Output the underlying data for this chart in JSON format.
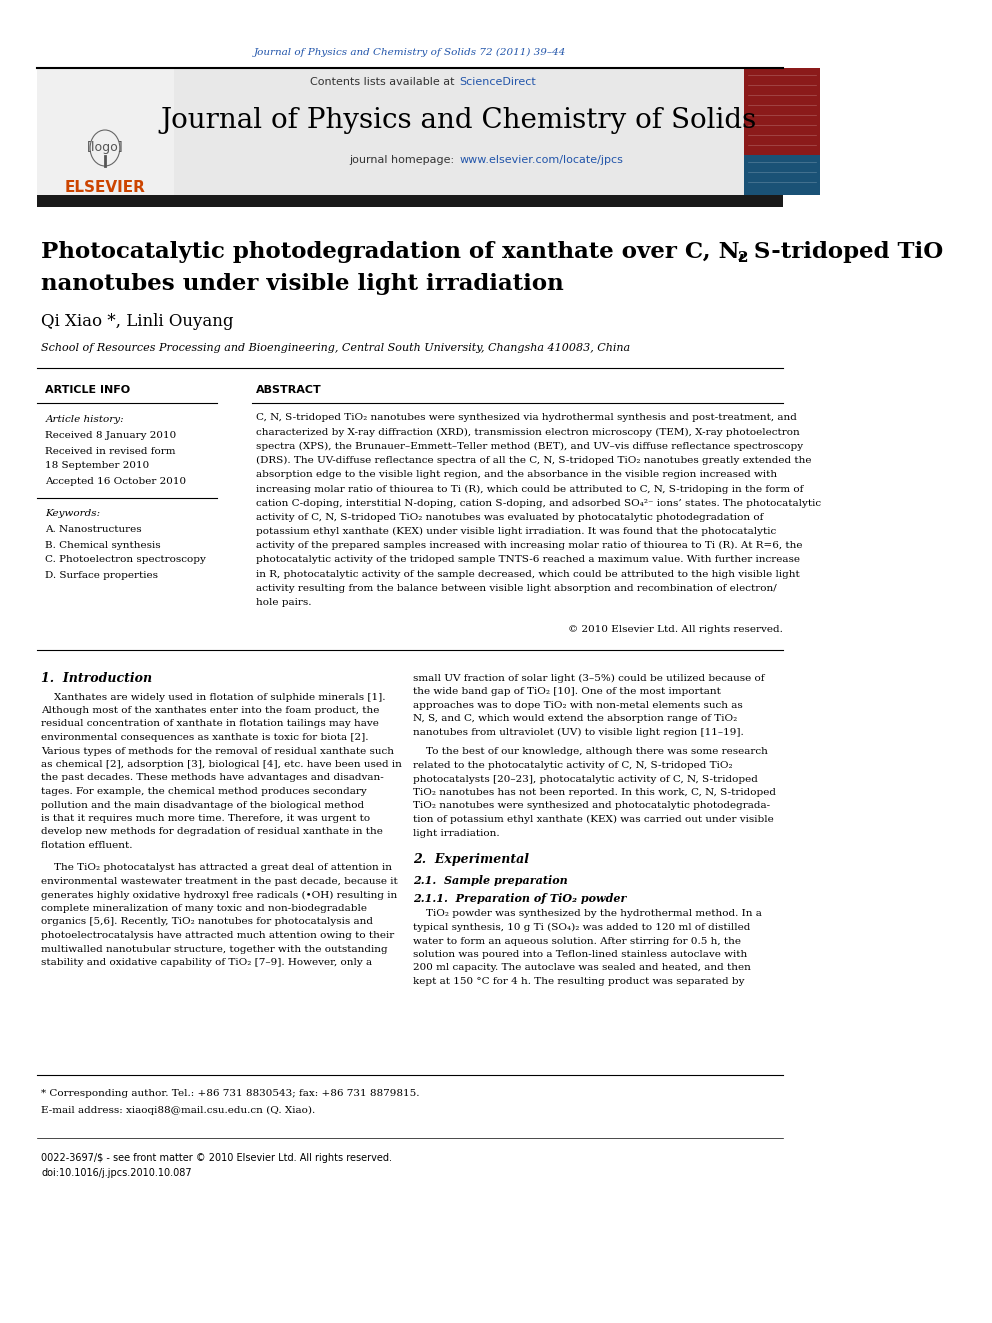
{
  "journal_ref": "Journal of Physics and Chemistry of Solids 72 (2011) 39–44",
  "journal_name": "Journal of Physics and Chemistry of Solids",
  "contents_line": "Contents lists available at ScienceDirect",
  "sciencedirect_text": "ScienceDirect",
  "homepage_line": "journal homepage: www.elsevier.com/locate/jpcs",
  "homepage_url": "www.elsevier.com/locate/jpcs",
  "paper_title_line1": "Photocatalytic photodegradation of xanthate over C, N, S-tridoped TiO",
  "paper_title_tio2_sub": "2",
  "paper_title_line2": "nanotubes under visible light irradiation",
  "authors": "Qi Xiao *, Linli Ouyang",
  "affiliation": "School of Resources Processing and Bioengineering, Central South University, Changsha 410083, China",
  "article_info_header": "ARTICLE INFO",
  "abstract_header": "ABSTRACT",
  "article_history_label": "Article history:",
  "received_line": "Received 8 January 2010",
  "revised_line": "Received in revised form",
  "revised_date": "18 September 2010",
  "accepted_line": "Accepted 16 October 2010",
  "keywords_label": "Keywords:",
  "keyword1": "A. Nanostructures",
  "keyword2": "B. Chemical synthesis",
  "keyword3": "C. Photoelectron spectroscopy",
  "keyword4": "D. Surface properties",
  "copyright_line": "© 2010 Elsevier Ltd. All rights reserved.",
  "intro_header": "1.  Introduction",
  "section2_header": "2.  Experimental",
  "section21_header": "2.1.  Sample preparation",
  "section211_header": "2.1.1.  Preparation of TiO₂ powder",
  "footnote_text": "* Corresponding author. Tel.: +86 731 8830543; fax: +86 731 8879815.",
  "footnote_email": "E-mail address: xiaoqi88@mail.csu.edu.cn (Q. Xiao).",
  "issn_line": "0022-3697/$ - see front matter © 2010 Elsevier Ltd. All rights reserved.",
  "doi_line": "doi:10.1016/j.jpcs.2010.10.087",
  "bg_color": "#ffffff",
  "header_bg": "#e8e8e8",
  "dark_bar_color": "#1a1a1a",
  "link_color": "#2255aa",
  "orange_color": "#cc4400",
  "title_color": "#000000",
  "text_color": "#000000",
  "abstract_lines": [
    "C, N, S-tridoped TiO₂ nanotubes were synthesized via hydrothermal synthesis and post-treatment, and",
    "characterized by X-ray diffraction (XRD), transmission electron microscopy (TEM), X-ray photoelectron",
    "spectra (XPS), the Brunauer–Emmett–Teller method (BET), and UV–vis diffuse reflectance spectroscopy",
    "(DRS). The UV-diffuse reflectance spectra of all the C, N, S-tridoped TiO₂ nanotubes greatly extended the",
    "absorption edge to the visible light region, and the absorbance in the visible region increased with",
    "increasing molar ratio of thiourea to Ti (R), which could be attributed to C, N, S-tridoping in the form of",
    "cation C-doping, interstitial N-doping, cation S-doping, and adsorbed SO₄²⁻ ions’ states. The photocatalytic",
    "activity of C, N, S-tridoped TiO₂ nanotubes was evaluated by photocatalytic photodegradation of",
    "potassium ethyl xanthate (KEX) under visible light irradiation. It was found that the photocatalytic",
    "activity of the prepared samples increased with increasing molar ratio of thiourea to Ti (R). At R=6, the",
    "photocatalytic activity of the tridoped sample TNTS-6 reached a maximum value. With further increase",
    "in R, photocatalytic activity of the sample decreased, which could be attributed to the high visible light",
    "activity resulting from the balance between visible light absorption and recombination of electron/",
    "hole pairs."
  ],
  "intro_l1": [
    "    Xanthates are widely used in flotation of sulphide minerals [1].",
    "Although most of the xanthates enter into the foam product, the",
    "residual concentration of xanthate in flotation tailings may have",
    "environmental consequences as xanthate is toxic for biota [2].",
    "Various types of methods for the removal of residual xanthate such",
    "as chemical [2], adsorption [3], biological [4], etc. have been used in",
    "the past decades. These methods have advantages and disadvan-",
    "tages. For example, the chemical method produces secondary",
    "pollution and the main disadvantage of the biological method",
    "is that it requires much more time. Therefore, it was urgent to",
    "develop new methods for degradation of residual xanthate in the",
    "flotation effluent."
  ],
  "intro_l2": [
    "    The TiO₂ photocatalyst has attracted a great deal of attention in",
    "environmental wastewater treatment in the past decade, because it",
    "generates highly oxidative hydroxyl free radicals (•OH) resulting in",
    "complete mineralization of many toxic and non-biodegradable",
    "organics [5,6]. Recently, TiO₂ nanotubes for photocatalysis and",
    "photoelectrocatalysis have attracted much attention owing to their",
    "multiwalled nanotubular structure, together with the outstanding",
    "stability and oxidative capability of TiO₂ [7–9]. However, only a"
  ],
  "right_col_lines1": [
    "small UV fraction of solar light (3–5%) could be utilized because of",
    "the wide band gap of TiO₂ [10]. One of the most important",
    "approaches was to dope TiO₂ with non-metal elements such as",
    "N, S, and C, which would extend the absorption range of TiO₂",
    "nanotubes from ultraviolet (UV) to visible light region [11–19]."
  ],
  "right_col_lines2": [
    "    To the best of our knowledge, although there was some research",
    "related to the photocatalytic activity of C, N, S-tridoped TiO₂",
    "photocatalysts [20–23], photocatalytic activity of C, N, S-tridoped",
    "TiO₂ nanotubes has not been reported. In this work, C, N, S-tridoped",
    "TiO₂ nanotubes were synthesized and photocatalytic photodegrada-",
    "tion of potassium ethyl xanthate (KEX) was carried out under visible",
    "light irradiation."
  ],
  "sec211_lines": [
    "    TiO₂ powder was synthesized by the hydrothermal method. In a",
    "typical synthesis, 10 g Ti (SO₄)₂ was added to 120 ml of distilled",
    "water to form an aqueous solution. After stirring for 0.5 h, the",
    "solution was poured into a Teflon-lined stainless autoclave with",
    "200 ml capacity. The autoclave was sealed and heated, and then",
    "kept at 150 °C for 4 h. The resulting product was separated by"
  ]
}
